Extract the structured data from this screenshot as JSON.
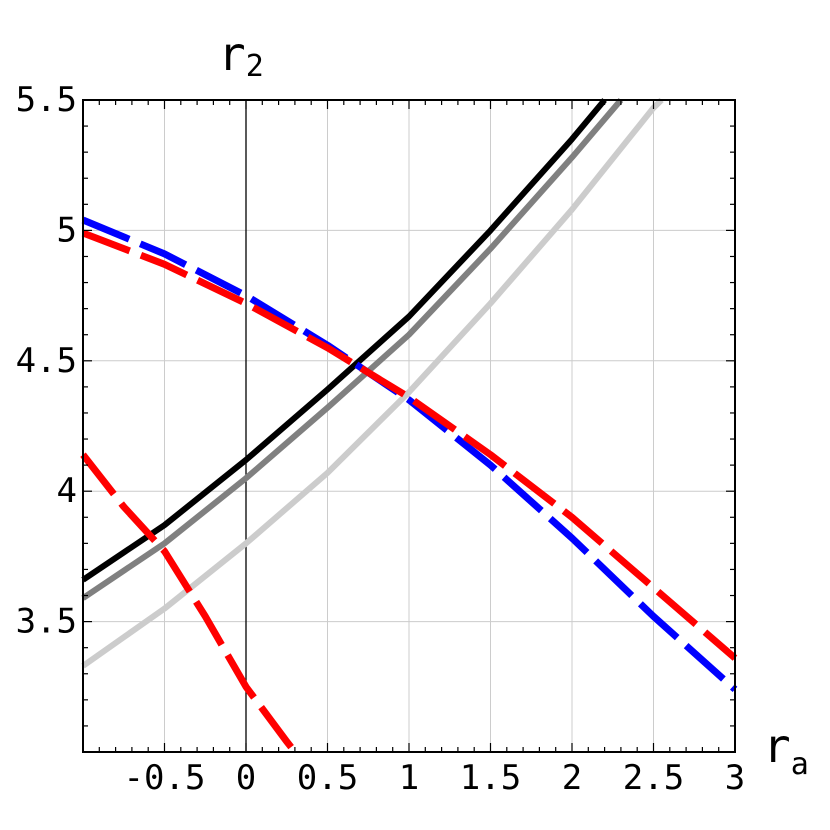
{
  "chart_data": {
    "type": "line",
    "xlabel": {
      "base": "r",
      "sub": "a"
    },
    "ylabel": {
      "base": "r",
      "sub": "2"
    },
    "xlim": [
      -1,
      3
    ],
    "ylim": [
      3,
      5.5
    ],
    "x_ticks": [
      -0.5,
      0,
      0.5,
      1,
      1.5,
      2,
      2.5,
      3
    ],
    "x_tick_labels": [
      "-0.5",
      "0",
      "0.5",
      "1",
      "1.5",
      "2",
      "2.5",
      "3"
    ],
    "y_ticks": [
      3.5,
      4,
      4.5,
      5,
      5.5
    ],
    "y_tick_labels": [
      "3.5",
      "4",
      "4.5",
      "5",
      "5.5"
    ],
    "grid": true,
    "series": [
      {
        "color": "#000000",
        "style": "solid",
        "width": 6,
        "x": [
          -1,
          -0.5,
          0,
          0.5,
          1,
          1.5,
          2,
          2.2
        ],
        "y": [
          3.66,
          3.87,
          4.12,
          4.39,
          4.67,
          5.0,
          5.35,
          5.5
        ]
      },
      {
        "color": "#808080",
        "style": "solid",
        "width": 6,
        "x": [
          -1,
          -0.5,
          0,
          0.5,
          1,
          1.5,
          2,
          2.3
        ],
        "y": [
          3.59,
          3.8,
          4.05,
          4.32,
          4.6,
          4.93,
          5.28,
          5.5
        ]
      },
      {
        "color": "#cccccc",
        "style": "solid",
        "width": 6,
        "x": [
          -1,
          -0.5,
          0,
          0.5,
          1,
          1.5,
          2,
          2.5,
          2.55
        ],
        "y": [
          3.33,
          3.55,
          3.8,
          4.07,
          4.38,
          4.72,
          5.08,
          5.47,
          5.5
        ]
      },
      {
        "color": "#0000ff",
        "style": "dashed",
        "width": 7,
        "x": [
          -1,
          -0.5,
          0,
          0.5,
          1,
          1.5,
          2,
          2.5,
          3
        ],
        "y": [
          5.04,
          4.91,
          4.75,
          4.56,
          4.35,
          4.1,
          3.82,
          3.52,
          3.24
        ]
      },
      {
        "color": "#ff0000",
        "style": "dashed",
        "width": 7,
        "x": [
          -1,
          -0.5,
          0,
          0.5,
          1,
          1.5,
          2,
          2.5,
          3
        ],
        "y": [
          4.99,
          4.87,
          4.72,
          4.55,
          4.36,
          4.14,
          3.9,
          3.63,
          3.36
        ]
      },
      {
        "color": "#ff0000",
        "style": "dashed",
        "width": 7,
        "x": [
          -1,
          -0.75,
          -0.5,
          -0.25,
          0,
          0.25,
          0.3
        ],
        "y": [
          4.14,
          3.94,
          3.77,
          3.52,
          3.25,
          3.04,
          3.0
        ]
      }
    ]
  }
}
